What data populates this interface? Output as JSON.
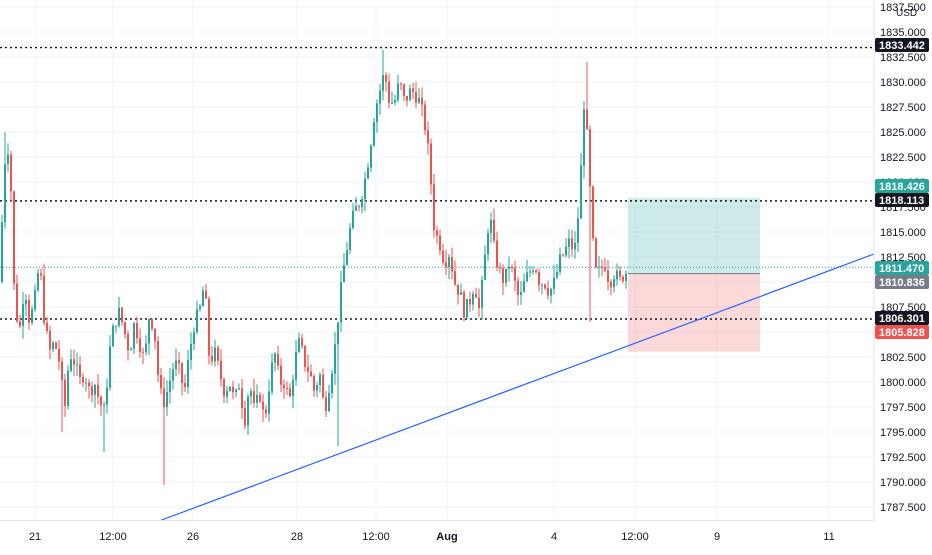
{
  "price_axis": {
    "currency": "USD",
    "labels": [
      "1837.500",
      "1835.000",
      "1832.500",
      "1830.000",
      "1827.500",
      "1825.000",
      "1822.500",
      "1820.000",
      "1817.500",
      "1815.000",
      "1812.500",
      "1810.000",
      "1807.500",
      "1805.000",
      "1802.500",
      "1800.000",
      "1797.500",
      "1795.000",
      "1792.500",
      "1790.000",
      "1787.500"
    ]
  },
  "time_axis": {
    "labels": [
      "21",
      "12:00",
      "26",
      "28",
      "12:00",
      "Aug",
      "4",
      "12:00",
      "9",
      "11"
    ]
  },
  "price_tags": [
    {
      "text": "1833.442",
      "price": 1833.442,
      "bg": "#131722",
      "fg": "#ffffff"
    },
    {
      "text": "1818.426",
      "price": 1818.426,
      "bg": "#26a69a",
      "fg": "#ffffff"
    },
    {
      "text": "1818.113",
      "price": 1818.113,
      "bg": "#131722",
      "fg": "#ffffff"
    },
    {
      "text": "1811.470",
      "price": 1811.47,
      "bg": "#26a69a",
      "fg": "#ffffff"
    },
    {
      "text": "1810.836",
      "price": 1810.836,
      "bg": "#787b86",
      "fg": "#ffffff"
    },
    {
      "text": "1806.301",
      "price": 1806.301,
      "bg": "#131722",
      "fg": "#ffffff"
    },
    {
      "text": "1805.828",
      "price": 1805.828,
      "bg": "#ef5350",
      "fg": "#ffffff"
    }
  ],
  "colors": {
    "up": "#26a69a",
    "down": "#ef5350",
    "trendline": "#2962ff",
    "profit_zone": "#26a69a",
    "loss_zone": "#ef5350",
    "grid": "#f0f3fa",
    "axis_text": "#131722"
  },
  "chart_data": {
    "type": "candlestick",
    "instrument_currency": "USD",
    "ylim": [
      1786,
      1838
    ],
    "horizontal_levels": [
      1833.442,
      1818.113,
      1806.301
    ],
    "current_price": 1811.47,
    "position_tool": {
      "type": "long",
      "target": 1818.426,
      "entry": 1810.836,
      "stop": 1805.828,
      "start": "Aug 5 12:00",
      "end": "Aug 7"
    },
    "trendline": {
      "from": {
        "time": "Jul 23",
        "price": 1785.5
      },
      "to": {
        "time": "Aug 12",
        "price": 1812.8
      }
    },
    "price_path": [
      [
        0,
        1810
      ],
      [
        5,
        1822
      ],
      [
        10,
        1824
      ],
      [
        15,
        1808
      ],
      [
        20,
        1805
      ],
      [
        25,
        1810
      ],
      [
        30,
        1806
      ],
      [
        35,
        1808
      ],
      [
        40,
        1812
      ],
      [
        45,
        1806
      ],
      [
        50,
        1803
      ],
      [
        55,
        1804
      ],
      [
        60,
        1802
      ],
      [
        65,
        1797
      ],
      [
        70,
        1803
      ],
      [
        75,
        1802
      ],
      [
        80,
        1800
      ],
      [
        85,
        1801
      ],
      [
        90,
        1799
      ],
      [
        95,
        1800
      ],
      [
        100,
        1798
      ],
      [
        105,
        1797
      ],
      [
        110,
        1803
      ],
      [
        115,
        1806
      ],
      [
        120,
        1807
      ],
      [
        125,
        1805
      ],
      [
        130,
        1803
      ],
      [
        135,
        1806
      ],
      [
        140,
        1804
      ],
      [
        145,
        1802
      ],
      [
        150,
        1807
      ],
      [
        155,
        1805
      ],
      [
        160,
        1799
      ],
      [
        165,
        1798
      ],
      [
        170,
        1800
      ],
      [
        175,
        1802
      ],
      [
        180,
        1801
      ],
      [
        185,
        1799
      ],
      [
        190,
        1803
      ],
      [
        195,
        1806
      ],
      [
        200,
        1807
      ],
      [
        205,
        1810
      ],
      [
        210,
        1802
      ],
      [
        215,
        1803
      ],
      [
        220,
        1801
      ],
      [
        225,
        1799
      ],
      [
        230,
        1800
      ],
      [
        235,
        1798
      ],
      [
        240,
        1800
      ],
      [
        245,
        1796
      ],
      [
        250,
        1800
      ],
      [
        255,
        1797
      ],
      [
        260,
        1799
      ],
      [
        265,
        1796
      ],
      [
        270,
        1800
      ],
      [
        275,
        1803
      ],
      [
        280,
        1800
      ],
      [
        285,
        1800
      ],
      [
        290,
        1798
      ],
      [
        295,
        1802
      ],
      [
        300,
        1804
      ],
      [
        305,
        1802
      ],
      [
        310,
        1801
      ],
      [
        315,
        1799
      ],
      [
        320,
        1801
      ],
      [
        325,
        1797
      ],
      [
        330,
        1800
      ],
      [
        335,
        1803
      ],
      [
        340,
        1808
      ],
      [
        345,
        1812
      ],
      [
        350,
        1815
      ],
      [
        355,
        1817
      ],
      [
        360,
        1818
      ],
      [
        365,
        1820
      ],
      [
        370,
        1823
      ],
      [
        375,
        1827
      ],
      [
        380,
        1829
      ],
      [
        385,
        1831
      ],
      [
        390,
        1828
      ],
      [
        395,
        1828
      ],
      [
        400,
        1830
      ],
      [
        405,
        1828
      ],
      [
        410,
        1829
      ],
      [
        415,
        1829
      ],
      [
        420,
        1828
      ],
      [
        425,
        1826
      ],
      [
        430,
        1822
      ],
      [
        435,
        1815
      ],
      [
        440,
        1814
      ],
      [
        445,
        1812
      ],
      [
        450,
        1813
      ],
      [
        455,
        1810
      ],
      [
        460,
        1809
      ],
      [
        465,
        1807
      ],
      [
        470,
        1808
      ],
      [
        475,
        1810
      ],
      [
        480,
        1807
      ],
      [
        485,
        1812
      ],
      [
        490,
        1817
      ],
      [
        495,
        1813
      ],
      [
        500,
        1811
      ],
      [
        505,
        1810
      ],
      [
        510,
        1812
      ],
      [
        515,
        1810
      ],
      [
        520,
        1808
      ],
      [
        525,
        1810
      ],
      [
        530,
        1811
      ],
      [
        535,
        1812
      ],
      [
        540,
        1810
      ],
      [
        545,
        1810
      ],
      [
        550,
        1809
      ],
      [
        555,
        1810
      ],
      [
        560,
        1812
      ],
      [
        565,
        1813
      ],
      [
        570,
        1814
      ],
      [
        575,
        1813
      ],
      [
        580,
        1818
      ],
      [
        585,
        1829
      ],
      [
        590,
        1820
      ],
      [
        595,
        1811
      ],
      [
        600,
        1811
      ],
      [
        605,
        1812
      ],
      [
        610,
        1810
      ],
      [
        615,
        1811
      ],
      [
        620,
        1810
      ],
      [
        625,
        1811
      ]
    ]
  }
}
